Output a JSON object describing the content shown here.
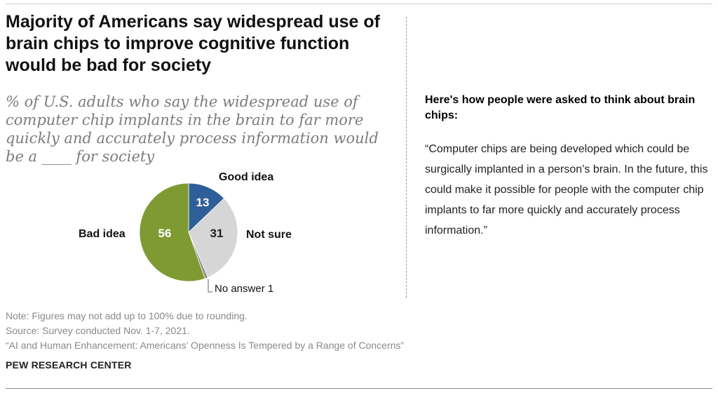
{
  "title": "Majority of Americans say widespread use of brain chips to improve cognitive function would be bad for society",
  "subtitle": "% of U.S. adults who say the widespread use of computer chip implants in the brain to far more quickly and accurately process information would be a ____ for society",
  "sidebar": {
    "heading": "Here's how people were asked to think about brain chips:",
    "quote": "“Computer chips are being developed which could be surgically implanted in a person’s brain. In the future, this could make it possible for people with the computer chip implants to far more quickly and accurately process information.”"
  },
  "chart_data": {
    "type": "pie",
    "title": "",
    "slices": [
      {
        "label": "Good idea",
        "value": 13,
        "color": "#2f5f98",
        "value_label": "13",
        "value_color": "#ffffff"
      },
      {
        "label": "Not sure",
        "value": 31,
        "color": "#d6d6d6",
        "value_label": "31",
        "value_color": "#222222"
      },
      {
        "label": "No answer",
        "value": 1,
        "color": "#8c8c8c",
        "value_label": "1",
        "value_color": "#222222"
      },
      {
        "label": "Bad idea",
        "value": 56,
        "color": "#7f9a32",
        "value_label": "56",
        "value_color": "#ffffff"
      }
    ]
  },
  "notes": {
    "note": "Note: Figures may not add up to 100% due to rounding.",
    "source": "Source: Survey conducted Nov. 1-7, 2021.",
    "report": "“AI and Human Enhancement: Americans’ Openness Is Tempered by a Range of Concerns”"
  },
  "brand": "PEW RESEARCH CENTER"
}
